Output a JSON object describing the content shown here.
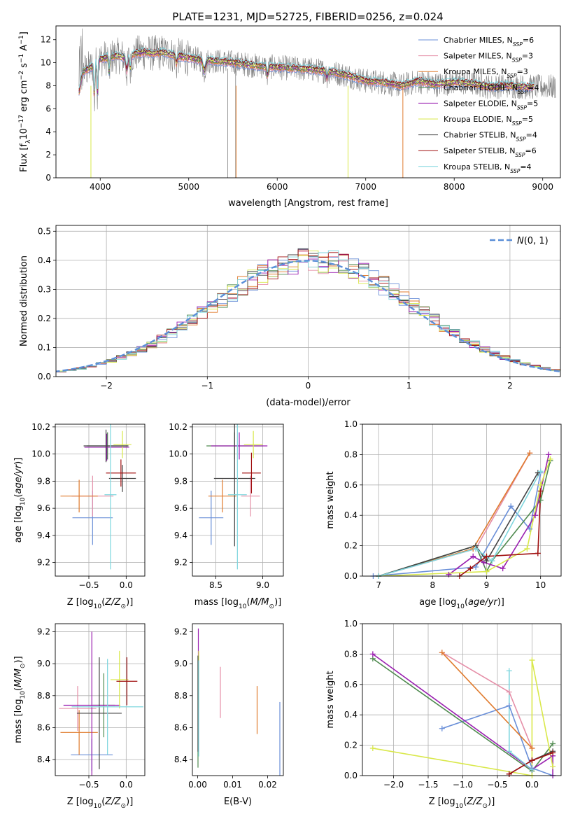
{
  "figure_title": "PLATE=1231, MJD=52725, FIBERID=0256, z=0.024",
  "colors": {
    "Chabrier MILES": "#6a8fd8",
    "Salpeter MILES": "#e58fa8",
    "Kroupa MILES": "#e07b2e",
    "Chabrier ELODIE": "#4f8a4f",
    "Salpeter ELODIE": "#9a1fb0",
    "Kroupa ELODIE": "#d9e84a",
    "Chabrier STELIB": "#444444",
    "Salpeter STELIB": "#a01010",
    "Kroupa STELIB": "#7ed6de",
    "data": "#808080",
    "normal": "#5b8fd8"
  },
  "chart_data": [
    {
      "id": "spectrum",
      "type": "line",
      "title": "PLATE=1231, MJD=52725, FIBERID=0256, z=0.024",
      "xlabel": "wavelength [Angstrom, rest frame]",
      "ylabel": "Flux [f_λ 10^-17 erg cm^-2 s^-1 A^-1]",
      "xlim": [
        3500,
        9200
      ],
      "ylim": [
        0,
        13.2
      ],
      "xticks": [
        4000,
        5000,
        6000,
        7000,
        8000,
        9000
      ],
      "yticks": [
        0,
        2,
        4,
        6,
        8,
        10,
        12
      ],
      "grid": false,
      "legend_position": "top-right",
      "legend": [
        "Chabrier MILES, N_SSP=6",
        "Salpeter MILES, N_SSP=3",
        "Kroupa MILES, N_SSP=3",
        "Chabrier ELODIE, N_SSP=4",
        "Salpeter ELODIE, N_SSP=5",
        "Kroupa ELODIE, N_SSP=5",
        "Chabrier STELIB, N_SSP=4",
        "Salpeter STELIB, N_SSP=6",
        "Kroupa STELIB, N_SSP=4"
      ],
      "data_range": [
        3760,
        9150
      ],
      "model_continuum": {
        "x": [
          3750,
          3800,
          3900,
          4000,
          4100,
          4200,
          4300,
          4400,
          4500,
          4600,
          4700,
          4800,
          5000,
          5200,
          5400,
          5600,
          5800,
          6000,
          6200,
          6400,
          6600,
          6800,
          7000,
          7200,
          7400,
          7600,
          7800,
          8000,
          8200,
          8400,
          8600,
          8800
        ],
        "y": [
          7.0,
          9.2,
          9.6,
          10.3,
          10.5,
          10.6,
          10.4,
          10.8,
          10.9,
          10.8,
          10.9,
          10.7,
          10.4,
          10.2,
          10.1,
          9.9,
          9.7,
          9.6,
          9.5,
          9.4,
          9.2,
          8.9,
          8.4,
          8.3,
          8.0,
          8.4,
          8.1,
          8.3,
          8.2,
          7.9,
          8.0,
          7.9
        ]
      }
    },
    {
      "id": "residual_histogram",
      "type": "line",
      "xlabel": "(data-model)/error",
      "ylabel": "Normed distribution",
      "xlim": [
        -2.5,
        2.5
      ],
      "ylim": [
        0,
        0.52
      ],
      "xticks": [
        -2,
        -1,
        0,
        1,
        2
      ],
      "yticks": [
        0.0,
        0.1,
        0.2,
        0.3,
        0.4,
        0.5
      ],
      "grid": true,
      "legend_position": "top-right",
      "legend": [
        "N(0,1)"
      ],
      "bin_width": 0.1
    },
    {
      "id": "age_vs_Z",
      "type": "scatter",
      "xlabel": "Z [log10(Z/Z⊙)]",
      "ylabel": "age [log10(age/yr)]",
      "xlim": [
        -0.95,
        0.25
      ],
      "ylim": [
        9.1,
        10.22
      ],
      "xticks": [
        -0.5,
        0.0
      ],
      "yticks": [
        9.2,
        9.4,
        9.6,
        9.8,
        10.0,
        10.2
      ],
      "grid": true,
      "points": [
        {
          "series": "Chabrier MILES",
          "x": -0.45,
          "xerr": 0.27,
          "y": 9.53,
          "yerr": 0.2
        },
        {
          "series": "Salpeter MILES",
          "x": -0.45,
          "xerr": 0.28,
          "y": 9.69,
          "yerr": 0.15
        },
        {
          "series": "Kroupa MILES",
          "x": -0.63,
          "xerr": 0.25,
          "y": 9.69,
          "yerr": 0.12
        },
        {
          "series": "Chabrier ELODIE",
          "x": -0.25,
          "xerr": 0.28,
          "y": 10.06,
          "yerr": 0.1
        },
        {
          "series": "Salpeter ELODIE",
          "x": -0.26,
          "xerr": 0.3,
          "y": 10.05,
          "yerr": 0.1
        },
        {
          "series": "Kroupa ELODIE",
          "x": -0.05,
          "xerr": 0.12,
          "y": 10.07,
          "yerr": 0.1
        },
        {
          "series": "Chabrier STELIB",
          "x": -0.27,
          "xerr": 0.3,
          "y": 10.06,
          "yerr": 0.12
        },
        {
          "series": "Chabrier STELIB",
          "x": -0.05,
          "xerr": 0.18,
          "y": 9.82,
          "yerr": 0.1
        },
        {
          "series": "Salpeter STELIB",
          "x": -0.07,
          "xerr": 0.2,
          "y": 9.86,
          "yerr": 0.1
        },
        {
          "series": "Kroupa STELIB",
          "x": -0.21,
          "xerr": 0.08,
          "y": 9.7,
          "yerr": 0.55
        }
      ]
    },
    {
      "id": "age_vs_mass",
      "type": "scatter",
      "xlabel": "mass [log10(M/M⊙)]",
      "ylabel": "",
      "xlim": [
        8.25,
        9.22
      ],
      "ylim": [
        9.1,
        10.22
      ],
      "xticks": [
        8.5,
        9.0
      ],
      "yticks": [
        9.2,
        9.4,
        9.6,
        9.8,
        10.0,
        10.2
      ],
      "grid": true,
      "points": [
        {
          "series": "Chabrier MILES",
          "x": 8.45,
          "xerr": 0.13,
          "y": 9.53,
          "yerr": 0.2
        },
        {
          "series": "Salpeter MILES",
          "x": 8.87,
          "xerr": 0.1,
          "y": 9.69,
          "yerr": 0.15
        },
        {
          "series": "Kroupa MILES",
          "x": 8.57,
          "xerr": 0.15,
          "y": 9.69,
          "yerr": 0.12
        },
        {
          "series": "Chabrier ELODIE",
          "x": 8.7,
          "xerr": 0.3,
          "y": 10.06,
          "yerr": 0.1
        },
        {
          "series": "Salpeter ELODIE",
          "x": 8.75,
          "xerr": 0.3,
          "y": 10.06,
          "yerr": 0.1
        },
        {
          "series": "Kroupa ELODIE",
          "x": 8.9,
          "xerr": 0.1,
          "y": 10.07,
          "yerr": 0.1
        },
        {
          "series": "Chabrier STELIB",
          "x": 8.7,
          "xerr": 0.22,
          "y": 9.82,
          "yerr": 0.5
        },
        {
          "series": "Salpeter STELIB",
          "x": 8.88,
          "xerr": 0.1,
          "y": 9.86,
          "yerr": 0.15
        },
        {
          "series": "Kroupa STELIB",
          "x": 8.73,
          "xerr": 0.1,
          "y": 9.7,
          "yerr": 0.55
        }
      ]
    },
    {
      "id": "weight_vs_age",
      "type": "line",
      "xlabel": "age [log10(age/yr)]",
      "ylabel": "mass weight",
      "xlim": [
        6.7,
        10.38
      ],
      "ylim": [
        0,
        1.0
      ],
      "xticks": [
        7,
        8,
        9,
        10
      ],
      "yticks": [
        0.0,
        0.2,
        0.4,
        0.6,
        0.8,
        1.0
      ],
      "grid": true,
      "series": [
        {
          "name": "Chabrier MILES",
          "x": [
            6.9,
            8.8,
            9.45,
            9.8,
            10.0
          ],
          "y": [
            0.0,
            0.06,
            0.46,
            0.31,
            0.68
          ]
        },
        {
          "name": "Salpeter MILES",
          "x": [
            7.0,
            8.8,
            9.8
          ],
          "y": [
            0.0,
            0.18,
            0.81
          ]
        },
        {
          "name": "Kroupa MILES",
          "x": [
            7.0,
            8.75,
            9.8
          ],
          "y": [
            0.0,
            0.18,
            0.81
          ]
        },
        {
          "name": "Chabrier ELODIE",
          "x": [
            7.0,
            8.8,
            9.0,
            9.1,
            10.0,
            10.18
          ],
          "y": [
            0.0,
            0.2,
            0.03,
            0.1,
            0.5,
            0.76
          ]
        },
        {
          "name": "Salpeter ELODIE",
          "x": [
            8.3,
            8.75,
            8.95,
            9.3,
            9.9,
            10.15
          ],
          "y": [
            0.01,
            0.13,
            0.09,
            0.05,
            0.4,
            0.8
          ]
        },
        {
          "name": "Kroupa ELODIE",
          "x": [
            7.0,
            9.0,
            9.75,
            10.0,
            10.18
          ],
          "y": [
            0.0,
            0.03,
            0.18,
            0.6,
            0.77
          ]
        },
        {
          "name": "Chabrier STELIB",
          "x": [
            7.0,
            8.8,
            9.0,
            9.95
          ],
          "y": [
            0.0,
            0.2,
            0.1,
            0.68
          ]
        },
        {
          "name": "Salpeter STELIB",
          "x": [
            8.5,
            8.7,
            9.0,
            9.95,
            10.0
          ],
          "y": [
            0.0,
            0.05,
            0.13,
            0.15,
            0.56
          ]
        },
        {
          "name": "Kroupa STELIB",
          "x": [
            7.0,
            8.8,
            9.1,
            10.0
          ],
          "y": [
            0.0,
            0.18,
            0.1,
            0.69
          ]
        }
      ]
    },
    {
      "id": "mass_vs_Z",
      "type": "scatter",
      "xlabel": "Z [log10(Z/Z⊙)]",
      "ylabel": "mass [log10(M/M⊙)]",
      "xlim": [
        -0.95,
        0.25
      ],
      "ylim": [
        8.3,
        9.25
      ],
      "xticks": [
        -0.5,
        0.0
      ],
      "yticks": [
        8.4,
        8.6,
        8.8,
        9.0,
        9.2
      ],
      "grid": true,
      "points": [
        {
          "series": "Chabrier MILES",
          "x": -0.46,
          "xerr": 0.28,
          "y": 8.43,
          "yerr": 0.1
        },
        {
          "series": "Salpeter MILES",
          "x": -0.65,
          "xerr": 0.25,
          "y": 8.72,
          "yerr": 0.14
        },
        {
          "series": "Kroupa MILES",
          "x": -0.63,
          "xerr": 0.25,
          "y": 8.57,
          "yerr": 0.14
        },
        {
          "series": "Chabrier ELODIE",
          "x": -0.3,
          "xerr": 0.15,
          "y": 8.74,
          "yerr": 0.2
        },
        {
          "series": "Salpeter ELODIE",
          "x": -0.46,
          "xerr": 0.38,
          "y": 8.74,
          "yerr": 0.46
        },
        {
          "series": "Kroupa ELODIE",
          "x": -0.09,
          "xerr": 0.12,
          "y": 8.9,
          "yerr": 0.18
        },
        {
          "series": "Chabrier STELIB",
          "x": -0.36,
          "xerr": 0.3,
          "y": 8.69,
          "yerr": 0.35
        },
        {
          "series": "Salpeter STELIB",
          "x": 0.01,
          "xerr": 0.14,
          "y": 8.89,
          "yerr": 0.15
        },
        {
          "series": "Kroupa STELIB",
          "x": -0.25,
          "xerr": 0.48,
          "y": 8.73,
          "yerr": 0.3
        }
      ]
    },
    {
      "id": "mass_vs_EBV",
      "type": "scatter",
      "xlabel": "E(B-V)",
      "ylabel": "",
      "xlim": [
        -0.0015,
        0.0245
      ],
      "ylim": [
        8.3,
        9.25
      ],
      "xticks": [
        0.0,
        0.01,
        0.02
      ],
      "yticks": [
        8.4,
        8.6,
        8.8,
        9.0,
        9.2
      ],
      "grid": false,
      "points": [
        {
          "series": "Chabrier MILES",
          "x": 0.0235,
          "xerr": 0,
          "y": 8.52,
          "yerr": 0.24
        },
        {
          "series": "Salpeter MILES",
          "x": 0.0065,
          "xerr": 0,
          "y": 8.82,
          "yerr": 0.16
        },
        {
          "series": "Kroupa MILES",
          "x": 0.017,
          "xerr": 0,
          "y": 8.71,
          "yerr": 0.15
        },
        {
          "series": "Chabrier ELODIE",
          "x": 0.0001,
          "xerr": 0,
          "y": 8.7,
          "yerr": 0.35
        },
        {
          "series": "Salpeter ELODIE",
          "x": 0.0002,
          "xerr": 0,
          "y": 9.0,
          "yerr": 0.22
        },
        {
          "series": "Kroupa ELODIE",
          "x": 0.0003,
          "xerr": 0,
          "y": 8.9,
          "yerr": 0.18
        },
        {
          "series": "Chabrier STELIB",
          "x": 0.0001,
          "xerr": 0,
          "y": 8.75,
          "yerr": 0.3
        },
        {
          "series": "Kroupa STELIB",
          "x": 0.0003,
          "xerr": 0,
          "y": 8.72,
          "yerr": 0.3
        }
      ]
    },
    {
      "id": "weight_vs_Z",
      "type": "line",
      "xlabel": "Z [log10(Z/Z⊙)]",
      "ylabel": "mass weight",
      "xlim": [
        -2.45,
        0.42
      ],
      "ylim": [
        0,
        1.0
      ],
      "xticks": [
        -2.0,
        -1.5,
        -1.0,
        -0.5,
        0.0
      ],
      "yticks": [
        0.0,
        0.2,
        0.4,
        0.6,
        0.8,
        1.0
      ],
      "grid": true,
      "series": [
        {
          "name": "Chabrier MILES",
          "x": [
            -1.3,
            -0.33,
            0.0,
            0.3
          ],
          "y": [
            0.31,
            0.46,
            0.05,
            0.0
          ]
        },
        {
          "name": "Salpeter MILES",
          "x": [
            -1.3,
            -0.33,
            0.0
          ],
          "y": [
            0.81,
            0.55,
            0.18
          ]
        },
        {
          "name": "Kroupa MILES",
          "x": [
            -1.3,
            0.0
          ],
          "y": [
            0.81,
            0.18
          ]
        },
        {
          "name": "Chabrier ELODIE",
          "x": [
            -2.3,
            0.0,
            0.3
          ],
          "y": [
            0.77,
            0.03,
            0.21
          ]
        },
        {
          "name": "Salpeter ELODIE",
          "x": [
            -2.3,
            0.0,
            0.3,
            0.3
          ],
          "y": [
            0.8,
            0.04,
            0.13,
            0.0
          ]
        },
        {
          "name": "Kroupa ELODIE",
          "x": [
            -2.3,
            0.0,
            0.0,
            0.3
          ],
          "y": [
            0.18,
            0.0,
            0.76,
            0.06
          ]
        },
        {
          "name": "Chabrier STELIB",
          "x": [
            -0.33,
            0.0,
            0.3
          ],
          "y": [
            0.01,
            0.1,
            0.16
          ]
        },
        {
          "name": "Salpeter STELIB",
          "x": [
            -0.33,
            0.0,
            0.3
          ],
          "y": [
            0.01,
            0.1,
            0.15
          ]
        },
        {
          "name": "Kroupa STELIB",
          "x": [
            -0.33,
            -0.33,
            0.0
          ],
          "y": [
            0.69,
            0.16,
            0.04
          ]
        }
      ]
    }
  ]
}
